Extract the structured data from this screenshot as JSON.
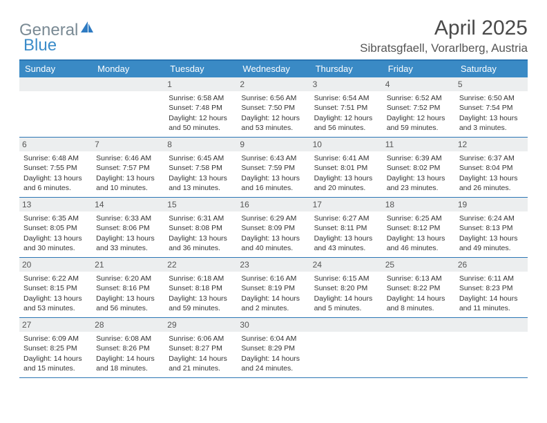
{
  "logo": {
    "general": "General",
    "blue": "Blue",
    "sail_color": "#2f7bc2"
  },
  "title": {
    "month": "April 2025",
    "location": "Sibratsgfaell, Vorarlberg, Austria"
  },
  "colors": {
    "header_bg": "#3a8ac5",
    "header_border": "#2a75b3",
    "daynum_bg": "#eceeef",
    "text": "#333333"
  },
  "day_names": [
    "Sunday",
    "Monday",
    "Tuesday",
    "Wednesday",
    "Thursday",
    "Friday",
    "Saturday"
  ],
  "weeks": [
    [
      {
        "n": "",
        "sunrise": "",
        "sunset": "",
        "daylight": ""
      },
      {
        "n": "",
        "sunrise": "",
        "sunset": "",
        "daylight": ""
      },
      {
        "n": "1",
        "sunrise": "Sunrise: 6:58 AM",
        "sunset": "Sunset: 7:48 PM",
        "daylight": "Daylight: 12 hours and 50 minutes."
      },
      {
        "n": "2",
        "sunrise": "Sunrise: 6:56 AM",
        "sunset": "Sunset: 7:50 PM",
        "daylight": "Daylight: 12 hours and 53 minutes."
      },
      {
        "n": "3",
        "sunrise": "Sunrise: 6:54 AM",
        "sunset": "Sunset: 7:51 PM",
        "daylight": "Daylight: 12 hours and 56 minutes."
      },
      {
        "n": "4",
        "sunrise": "Sunrise: 6:52 AM",
        "sunset": "Sunset: 7:52 PM",
        "daylight": "Daylight: 12 hours and 59 minutes."
      },
      {
        "n": "5",
        "sunrise": "Sunrise: 6:50 AM",
        "sunset": "Sunset: 7:54 PM",
        "daylight": "Daylight: 13 hours and 3 minutes."
      }
    ],
    [
      {
        "n": "6",
        "sunrise": "Sunrise: 6:48 AM",
        "sunset": "Sunset: 7:55 PM",
        "daylight": "Daylight: 13 hours and 6 minutes."
      },
      {
        "n": "7",
        "sunrise": "Sunrise: 6:46 AM",
        "sunset": "Sunset: 7:57 PM",
        "daylight": "Daylight: 13 hours and 10 minutes."
      },
      {
        "n": "8",
        "sunrise": "Sunrise: 6:45 AM",
        "sunset": "Sunset: 7:58 PM",
        "daylight": "Daylight: 13 hours and 13 minutes."
      },
      {
        "n": "9",
        "sunrise": "Sunrise: 6:43 AM",
        "sunset": "Sunset: 7:59 PM",
        "daylight": "Daylight: 13 hours and 16 minutes."
      },
      {
        "n": "10",
        "sunrise": "Sunrise: 6:41 AM",
        "sunset": "Sunset: 8:01 PM",
        "daylight": "Daylight: 13 hours and 20 minutes."
      },
      {
        "n": "11",
        "sunrise": "Sunrise: 6:39 AM",
        "sunset": "Sunset: 8:02 PM",
        "daylight": "Daylight: 13 hours and 23 minutes."
      },
      {
        "n": "12",
        "sunrise": "Sunrise: 6:37 AM",
        "sunset": "Sunset: 8:04 PM",
        "daylight": "Daylight: 13 hours and 26 minutes."
      }
    ],
    [
      {
        "n": "13",
        "sunrise": "Sunrise: 6:35 AM",
        "sunset": "Sunset: 8:05 PM",
        "daylight": "Daylight: 13 hours and 30 minutes."
      },
      {
        "n": "14",
        "sunrise": "Sunrise: 6:33 AM",
        "sunset": "Sunset: 8:06 PM",
        "daylight": "Daylight: 13 hours and 33 minutes."
      },
      {
        "n": "15",
        "sunrise": "Sunrise: 6:31 AM",
        "sunset": "Sunset: 8:08 PM",
        "daylight": "Daylight: 13 hours and 36 minutes."
      },
      {
        "n": "16",
        "sunrise": "Sunrise: 6:29 AM",
        "sunset": "Sunset: 8:09 PM",
        "daylight": "Daylight: 13 hours and 40 minutes."
      },
      {
        "n": "17",
        "sunrise": "Sunrise: 6:27 AM",
        "sunset": "Sunset: 8:11 PM",
        "daylight": "Daylight: 13 hours and 43 minutes."
      },
      {
        "n": "18",
        "sunrise": "Sunrise: 6:25 AM",
        "sunset": "Sunset: 8:12 PM",
        "daylight": "Daylight: 13 hours and 46 minutes."
      },
      {
        "n": "19",
        "sunrise": "Sunrise: 6:24 AM",
        "sunset": "Sunset: 8:13 PM",
        "daylight": "Daylight: 13 hours and 49 minutes."
      }
    ],
    [
      {
        "n": "20",
        "sunrise": "Sunrise: 6:22 AM",
        "sunset": "Sunset: 8:15 PM",
        "daylight": "Daylight: 13 hours and 53 minutes."
      },
      {
        "n": "21",
        "sunrise": "Sunrise: 6:20 AM",
        "sunset": "Sunset: 8:16 PM",
        "daylight": "Daylight: 13 hours and 56 minutes."
      },
      {
        "n": "22",
        "sunrise": "Sunrise: 6:18 AM",
        "sunset": "Sunset: 8:18 PM",
        "daylight": "Daylight: 13 hours and 59 minutes."
      },
      {
        "n": "23",
        "sunrise": "Sunrise: 6:16 AM",
        "sunset": "Sunset: 8:19 PM",
        "daylight": "Daylight: 14 hours and 2 minutes."
      },
      {
        "n": "24",
        "sunrise": "Sunrise: 6:15 AM",
        "sunset": "Sunset: 8:20 PM",
        "daylight": "Daylight: 14 hours and 5 minutes."
      },
      {
        "n": "25",
        "sunrise": "Sunrise: 6:13 AM",
        "sunset": "Sunset: 8:22 PM",
        "daylight": "Daylight: 14 hours and 8 minutes."
      },
      {
        "n": "26",
        "sunrise": "Sunrise: 6:11 AM",
        "sunset": "Sunset: 8:23 PM",
        "daylight": "Daylight: 14 hours and 11 minutes."
      }
    ],
    [
      {
        "n": "27",
        "sunrise": "Sunrise: 6:09 AM",
        "sunset": "Sunset: 8:25 PM",
        "daylight": "Daylight: 14 hours and 15 minutes."
      },
      {
        "n": "28",
        "sunrise": "Sunrise: 6:08 AM",
        "sunset": "Sunset: 8:26 PM",
        "daylight": "Daylight: 14 hours and 18 minutes."
      },
      {
        "n": "29",
        "sunrise": "Sunrise: 6:06 AM",
        "sunset": "Sunset: 8:27 PM",
        "daylight": "Daylight: 14 hours and 21 minutes."
      },
      {
        "n": "30",
        "sunrise": "Sunrise: 6:04 AM",
        "sunset": "Sunset: 8:29 PM",
        "daylight": "Daylight: 14 hours and 24 minutes."
      },
      {
        "n": "",
        "sunrise": "",
        "sunset": "",
        "daylight": ""
      },
      {
        "n": "",
        "sunrise": "",
        "sunset": "",
        "daylight": ""
      },
      {
        "n": "",
        "sunrise": "",
        "sunset": "",
        "daylight": ""
      }
    ]
  ]
}
